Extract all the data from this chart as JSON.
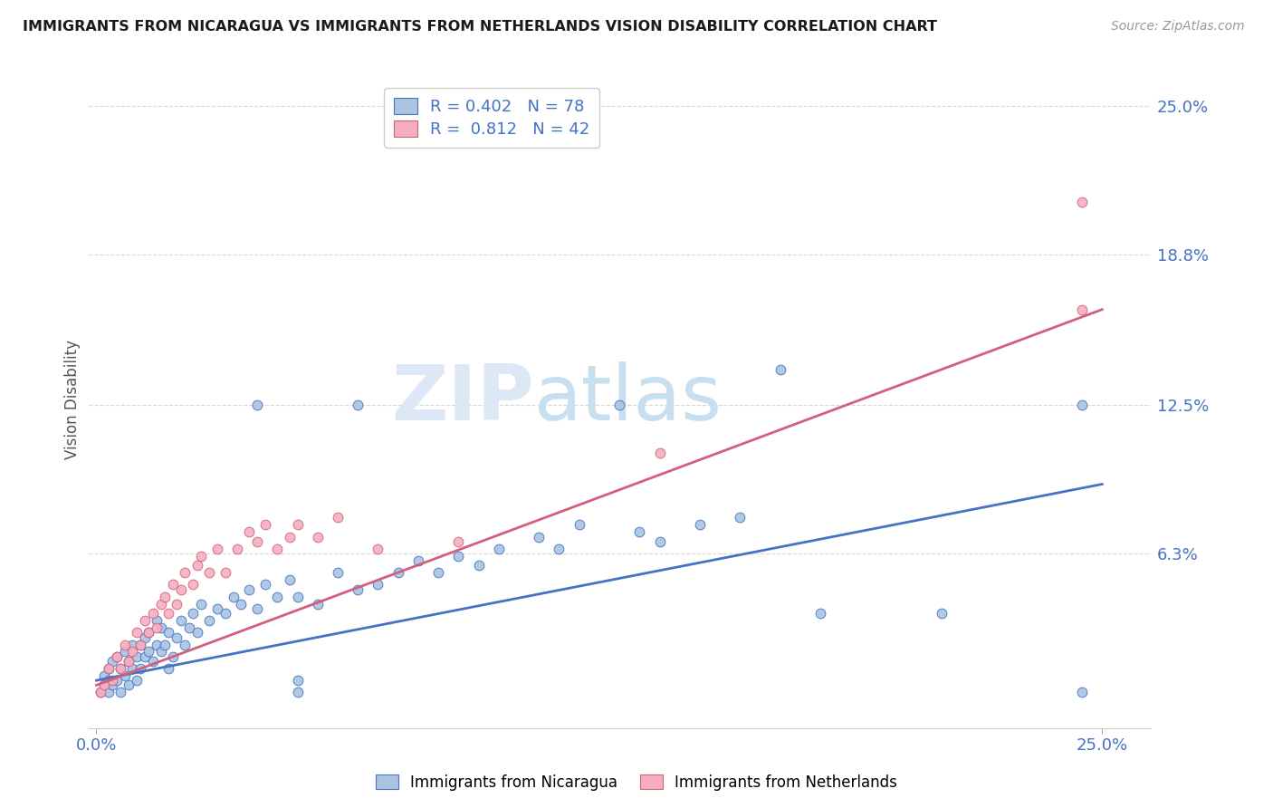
{
  "title": "IMMIGRANTS FROM NICARAGUA VS IMMIGRANTS FROM NETHERLANDS VISION DISABILITY CORRELATION CHART",
  "source": "Source: ZipAtlas.com",
  "ylabel": "Vision Disability",
  "y_tick_labels": [
    "25.0%",
    "18.8%",
    "12.5%",
    "6.3%"
  ],
  "y_tick_values": [
    0.25,
    0.188,
    0.125,
    0.063
  ],
  "x_tick_labels": [
    "0.0%",
    "25.0%"
  ],
  "x_tick_values": [
    0.0,
    0.25
  ],
  "xlim": [
    -0.002,
    0.262
  ],
  "ylim": [
    -0.01,
    0.265
  ],
  "color_nicaragua": "#aac4e2",
  "color_netherlands": "#f4aec0",
  "line_color_nicaragua": "#4472c4",
  "line_color_netherlands": "#d45f7a",
  "reg_nicaragua": [
    0.0,
    0.01,
    0.25,
    0.092
  ],
  "reg_netherlands": [
    0.0,
    0.008,
    0.25,
    0.165
  ],
  "scatter_nicaragua": [
    [
      0.001,
      0.005
    ],
    [
      0.002,
      0.008
    ],
    [
      0.002,
      0.012
    ],
    [
      0.003,
      0.005
    ],
    [
      0.003,
      0.01
    ],
    [
      0.003,
      0.015
    ],
    [
      0.004,
      0.008
    ],
    [
      0.004,
      0.018
    ],
    [
      0.005,
      0.01
    ],
    [
      0.005,
      0.02
    ],
    [
      0.006,
      0.005
    ],
    [
      0.006,
      0.015
    ],
    [
      0.007,
      0.012
    ],
    [
      0.007,
      0.022
    ],
    [
      0.008,
      0.008
    ],
    [
      0.008,
      0.018
    ],
    [
      0.009,
      0.015
    ],
    [
      0.009,
      0.025
    ],
    [
      0.01,
      0.01
    ],
    [
      0.01,
      0.02
    ],
    [
      0.011,
      0.015
    ],
    [
      0.011,
      0.025
    ],
    [
      0.012,
      0.02
    ],
    [
      0.012,
      0.028
    ],
    [
      0.013,
      0.022
    ],
    [
      0.013,
      0.03
    ],
    [
      0.014,
      0.018
    ],
    [
      0.015,
      0.025
    ],
    [
      0.015,
      0.035
    ],
    [
      0.016,
      0.022
    ],
    [
      0.016,
      0.032
    ],
    [
      0.017,
      0.025
    ],
    [
      0.018,
      0.015
    ],
    [
      0.018,
      0.03
    ],
    [
      0.019,
      0.02
    ],
    [
      0.02,
      0.028
    ],
    [
      0.021,
      0.035
    ],
    [
      0.022,
      0.025
    ],
    [
      0.023,
      0.032
    ],
    [
      0.024,
      0.038
    ],
    [
      0.025,
      0.03
    ],
    [
      0.026,
      0.042
    ],
    [
      0.028,
      0.035
    ],
    [
      0.03,
      0.04
    ],
    [
      0.032,
      0.038
    ],
    [
      0.034,
      0.045
    ],
    [
      0.036,
      0.042
    ],
    [
      0.038,
      0.048
    ],
    [
      0.04,
      0.04
    ],
    [
      0.042,
      0.05
    ],
    [
      0.045,
      0.045
    ],
    [
      0.048,
      0.052
    ],
    [
      0.05,
      0.045
    ],
    [
      0.055,
      0.042
    ],
    [
      0.06,
      0.055
    ],
    [
      0.065,
      0.048
    ],
    [
      0.07,
      0.05
    ],
    [
      0.075,
      0.055
    ],
    [
      0.08,
      0.06
    ],
    [
      0.085,
      0.055
    ],
    [
      0.09,
      0.062
    ],
    [
      0.095,
      0.058
    ],
    [
      0.1,
      0.065
    ],
    [
      0.11,
      0.07
    ],
    [
      0.115,
      0.065
    ],
    [
      0.12,
      0.075
    ],
    [
      0.13,
      0.125
    ],
    [
      0.135,
      0.072
    ],
    [
      0.14,
      0.068
    ],
    [
      0.15,
      0.075
    ],
    [
      0.16,
      0.078
    ],
    [
      0.17,
      0.14
    ],
    [
      0.04,
      0.125
    ],
    [
      0.05,
      0.01
    ],
    [
      0.18,
      0.038
    ],
    [
      0.21,
      0.038
    ],
    [
      0.245,
      0.005
    ],
    [
      0.245,
      0.125
    ],
    [
      0.05,
      0.005
    ],
    [
      0.065,
      0.125
    ]
  ],
  "scatter_netherlands": [
    [
      0.001,
      0.005
    ],
    [
      0.002,
      0.008
    ],
    [
      0.003,
      0.015
    ],
    [
      0.004,
      0.01
    ],
    [
      0.005,
      0.02
    ],
    [
      0.006,
      0.015
    ],
    [
      0.007,
      0.025
    ],
    [
      0.008,
      0.018
    ],
    [
      0.009,
      0.022
    ],
    [
      0.01,
      0.03
    ],
    [
      0.011,
      0.025
    ],
    [
      0.012,
      0.035
    ],
    [
      0.013,
      0.03
    ],
    [
      0.014,
      0.038
    ],
    [
      0.015,
      0.032
    ],
    [
      0.016,
      0.042
    ],
    [
      0.017,
      0.045
    ],
    [
      0.018,
      0.038
    ],
    [
      0.019,
      0.05
    ],
    [
      0.02,
      0.042
    ],
    [
      0.021,
      0.048
    ],
    [
      0.022,
      0.055
    ],
    [
      0.024,
      0.05
    ],
    [
      0.025,
      0.058
    ],
    [
      0.026,
      0.062
    ],
    [
      0.028,
      0.055
    ],
    [
      0.03,
      0.065
    ],
    [
      0.032,
      0.055
    ],
    [
      0.035,
      0.065
    ],
    [
      0.038,
      0.072
    ],
    [
      0.04,
      0.068
    ],
    [
      0.042,
      0.075
    ],
    [
      0.045,
      0.065
    ],
    [
      0.048,
      0.07
    ],
    [
      0.05,
      0.075
    ],
    [
      0.055,
      0.07
    ],
    [
      0.06,
      0.078
    ],
    [
      0.07,
      0.065
    ],
    [
      0.09,
      0.068
    ],
    [
      0.14,
      0.105
    ],
    [
      0.245,
      0.21
    ],
    [
      0.245,
      0.165
    ]
  ],
  "background_color": "#ffffff",
  "grid_color": "#d8d8d8",
  "title_color": "#1a1a1a",
  "axis_label_color": "#4472c4",
  "watermark_zip": "ZIP",
  "watermark_atlas": "atlas",
  "watermark_color_zip": "#dce8f5",
  "watermark_color_atlas": "#c8dff0"
}
